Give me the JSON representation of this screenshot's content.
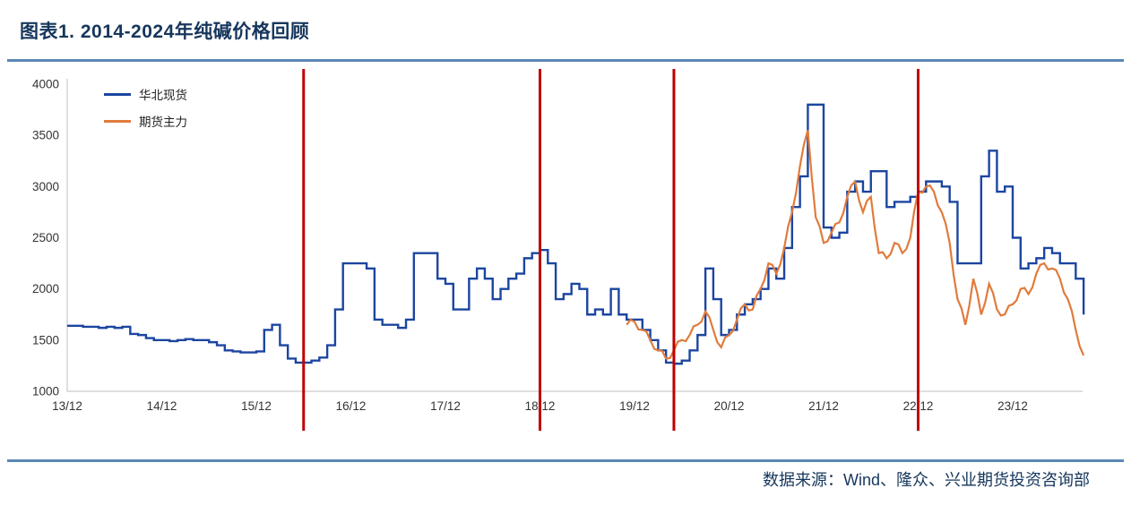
{
  "header": {
    "title": "图表1. 2014-2024年纯碱价格回顾"
  },
  "footer": {
    "source": "数据来源：Wind、隆众、兴业期货投资咨询部"
  },
  "colors": {
    "accent_rule": "#5b87b5",
    "title_text": "#16365c",
    "source_text": "#16365c",
    "spot_line": "#1c45a0",
    "futures_line": "#e07b3c",
    "event_line": "#c00000",
    "axis_line": "#bfbfbf",
    "tick_text": "#333333"
  },
  "chart_data": {
    "type": "line",
    "title": "图表1. 2014-2024年纯碱价格回顾",
    "xlabel": "",
    "ylabel": "",
    "x_unit": "months since 2013-12",
    "ylim": [
      1000,
      4000
    ],
    "yticks": [
      1000,
      1500,
      2000,
      2500,
      3000,
      3500,
      4000
    ],
    "xtick_months": [
      0,
      12,
      24,
      36,
      48,
      60,
      72,
      84,
      96,
      108,
      120
    ],
    "xtick_labels": [
      "13/12",
      "14/12",
      "15/12",
      "16/12",
      "17/12",
      "18/12",
      "19/12",
      "20/12",
      "21/12",
      "22/12",
      "23/12"
    ],
    "grid": false,
    "legend_position": "top-left-inside",
    "event_lines_months": [
      30,
      60,
      77,
      108
    ],
    "series": [
      {
        "name": "华北现货",
        "color": "#1c45a0",
        "style": "step",
        "start_month": 0,
        "values": [
          1640,
          1640,
          1630,
          1630,
          1620,
          1630,
          1620,
          1630,
          1560,
          1550,
          1520,
          1500,
          1500,
          1490,
          1500,
          1510,
          1500,
          1500,
          1480,
          1450,
          1400,
          1390,
          1380,
          1380,
          1390,
          1600,
          1650,
          1450,
          1320,
          1280,
          1280,
          1300,
          1330,
          1450,
          1800,
          2250,
          2250,
          2250,
          2200,
          1700,
          1650,
          1650,
          1620,
          1700,
          2350,
          2350,
          2350,
          2100,
          2050,
          1800,
          1800,
          2100,
          2200,
          2100,
          1900,
          2000,
          2100,
          2150,
          2300,
          2350,
          2380,
          2250,
          1900,
          1950,
          2050,
          2000,
          1750,
          1800,
          1750,
          2000,
          1750,
          1700,
          1700,
          1600,
          1500,
          1400,
          1280,
          1270,
          1300,
          1400,
          1550,
          2200,
          1900,
          1550,
          1600,
          1750,
          1850,
          1900,
          2000,
          2200,
          2100,
          2400,
          2800,
          3100,
          3800,
          3800,
          2600,
          2500,
          2550,
          2950,
          3050,
          2950,
          3150,
          3150,
          2800,
          2850,
          2850,
          2900,
          2950,
          3050,
          3050,
          3000,
          2850,
          2250,
          2250,
          2250,
          3100,
          3350,
          2950,
          3000,
          2500,
          2200,
          2250,
          2300,
          2400,
          2350,
          2250,
          2250,
          2100,
          1750
        ]
      },
      {
        "name": "期货主力",
        "color": "#e07b3c",
        "style": "line",
        "start_month": 71,
        "values": [
          1650,
          1680,
          1600,
          1500,
          1400,
          1320,
          1400,
          1500,
          1550,
          1650,
          1780,
          1600,
          1430,
          1550,
          1700,
          1850,
          1800,
          2000,
          2250,
          2150,
          2400,
          2750,
          3200,
          3550,
          2700,
          2450,
          2550,
          2650,
          2900,
          3050,
          2750,
          2900,
          2350,
          2300,
          2450,
          2350,
          2500,
          2950,
          3000,
          2950,
          2750,
          2450,
          1900,
          1650,
          2100,
          1750,
          2050,
          1800,
          1750,
          1850,
          2000,
          1950,
          2150,
          2250,
          2200,
          2100,
          1900,
          1600,
          1350
        ]
      }
    ]
  }
}
